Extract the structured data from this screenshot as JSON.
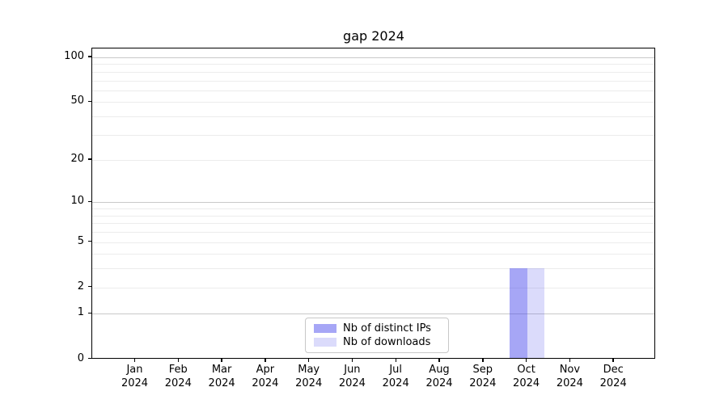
{
  "chart_data": {
    "type": "bar",
    "title": "gap 2024",
    "scale": "log1p",
    "ylim": [
      0,
      115
    ],
    "grid": "horizontal",
    "legend_position": "lower center",
    "y_ticks": [
      0,
      1,
      2,
      5,
      10,
      20,
      50,
      100
    ],
    "y_major_gridlines": [
      1,
      10,
      100
    ],
    "y_minor_gridlines": [
      2,
      3,
      4,
      5,
      6,
      7,
      8,
      9,
      20,
      30,
      40,
      50,
      60,
      70,
      80,
      90
    ],
    "x_ticks": [
      {
        "month": "Jan",
        "year": "2024"
      },
      {
        "month": "Feb",
        "year": "2024"
      },
      {
        "month": "Mar",
        "year": "2024"
      },
      {
        "month": "Apr",
        "year": "2024"
      },
      {
        "month": "May",
        "year": "2024"
      },
      {
        "month": "Jun",
        "year": "2024"
      },
      {
        "month": "Jul",
        "year": "2024"
      },
      {
        "month": "Aug",
        "year": "2024"
      },
      {
        "month": "Sep",
        "year": "2024"
      },
      {
        "month": "Oct",
        "year": "2024"
      },
      {
        "month": "Nov",
        "year": "2024"
      },
      {
        "month": "Dec",
        "year": "2024"
      }
    ],
    "series": [
      {
        "name": "Nb of distinct IPs",
        "color": "rgba(65, 65, 235, 0.47)",
        "values": [
          0,
          0,
          0,
          0,
          0,
          0,
          0,
          0,
          0,
          3,
          0,
          0
        ]
      },
      {
        "name": "Nb of downloads",
        "color": "rgba(65, 65, 235, 0.19)",
        "values": [
          0,
          0,
          0,
          0,
          0,
          0,
          0,
          0,
          0,
          3,
          0,
          0
        ]
      }
    ]
  }
}
